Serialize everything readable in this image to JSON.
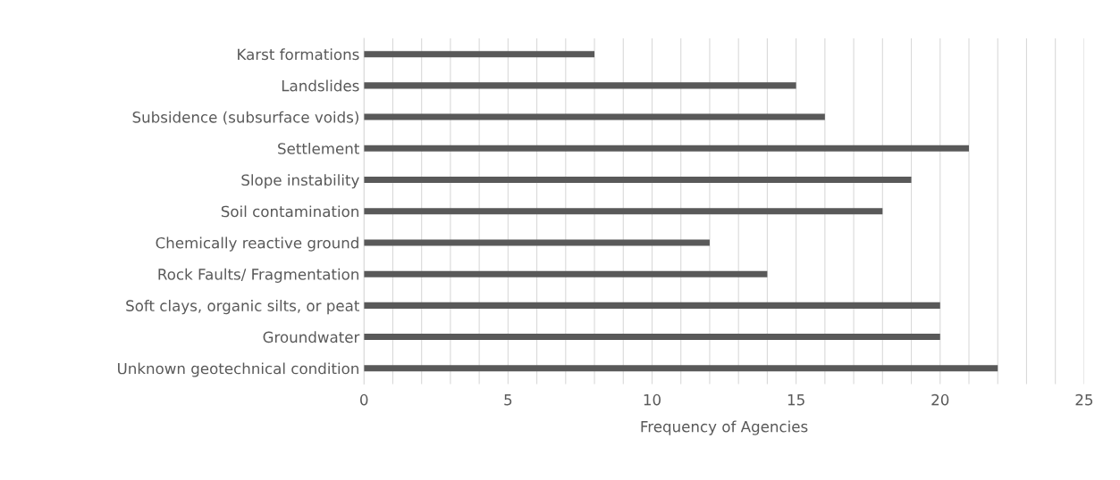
{
  "chart_data": {
    "type": "bar",
    "orientation": "horizontal",
    "xlabel": "Frequency of Agencies",
    "categories": [
      "Karst formations",
      "Landslides",
      "Subsidence (subsurface voids)",
      "Settlement",
      "Slope instability",
      "Soil contamination",
      "Chemically reactive ground",
      "Rock Faults/ Fragmentation",
      "Soft clays, organic silts, or peat",
      "Groundwater",
      "Unknown geotechnical condition"
    ],
    "values": [
      8,
      15,
      16,
      21,
      19,
      18,
      12,
      14,
      20,
      20,
      22
    ],
    "color": "#595959",
    "xlim": [
      0,
      25
    ],
    "xticks": [
      0,
      {
        "value": 1,
        "label": null
      },
      {
        "value": 2,
        "label": null
      },
      {
        "value": 3,
        "label": null
      },
      {
        "value": 4,
        "label": null
      },
      5,
      {
        "value": 6,
        "label": null
      },
      {
        "value": 7,
        "label": null
      },
      {
        "value": 8,
        "label": null
      },
      {
        "value": 9,
        "label": null
      },
      10,
      {
        "value": 11,
        "label": null
      },
      {
        "value": 12,
        "label": null
      },
      {
        "value": 13,
        "label": null
      },
      {
        "value": 14,
        "label": null
      },
      15,
      {
        "value": 16,
        "label": null
      },
      {
        "value": 17,
        "label": null
      },
      {
        "value": 18,
        "label": null
      },
      {
        "value": 19,
        "label": null
      },
      20,
      {
        "value": 21,
        "label": null
      },
      {
        "value": 22,
        "label": null
      },
      {
        "value": 23,
        "label": null
      },
      {
        "value": 24,
        "label": null
      },
      25
    ],
    "grid": "x"
  }
}
